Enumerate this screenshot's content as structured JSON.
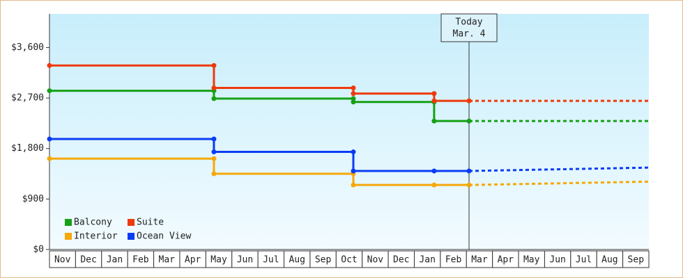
{
  "chart_data": {
    "type": "line",
    "step": true,
    "xlim": [
      0,
      23
    ],
    "xticks": [
      {
        "value": 0,
        "label": "Nov"
      },
      {
        "value": 1,
        "label": "Dec"
      },
      {
        "value": 2,
        "label": "Jan"
      },
      {
        "value": 3,
        "label": "Feb"
      },
      {
        "value": 4,
        "label": "Mar"
      },
      {
        "value": 5,
        "label": "Apr"
      },
      {
        "value": 6,
        "label": "May"
      },
      {
        "value": 7,
        "label": "Jun"
      },
      {
        "value": 8,
        "label": "Jul"
      },
      {
        "value": 9,
        "label": "Aug"
      },
      {
        "value": 10,
        "label": "Sep"
      },
      {
        "value": 11,
        "label": "Oct"
      },
      {
        "value": 12,
        "label": "Nov"
      },
      {
        "value": 13,
        "label": "Dec"
      },
      {
        "value": 14,
        "label": "Jan"
      },
      {
        "value": 15,
        "label": "Feb"
      },
      {
        "value": 16,
        "label": "Mar"
      },
      {
        "value": 17,
        "label": "Apr"
      },
      {
        "value": 18,
        "label": "May"
      },
      {
        "value": 19,
        "label": "Jun"
      },
      {
        "value": 20,
        "label": "Jul"
      },
      {
        "value": 21,
        "label": "Aug"
      },
      {
        "value": 22,
        "label": "Sep"
      }
    ],
    "ylim": [
      0,
      4200
    ],
    "yticks": [
      {
        "value": 0,
        "label": "$0"
      },
      {
        "value": 900,
        "label": "$900"
      },
      {
        "value": 1800,
        "label": "$1,800"
      },
      {
        "value": 2700,
        "label": "$2,700"
      },
      {
        "value": 3600,
        "label": "$3,600"
      }
    ],
    "today": {
      "x": 16.1,
      "label": [
        "Today",
        "Mar. 4"
      ]
    },
    "series": [
      {
        "name": "Balcony",
        "color": "#16a016",
        "x": [
          0,
          6.31,
          6.31,
          11.66,
          11.66,
          14.76,
          14.76,
          16.1
        ],
        "values": [
          2830,
          2830,
          2690,
          2690,
          2630,
          2630,
          2290,
          2290
        ],
        "projected": {
          "x": [
            16.1,
            23
          ],
          "values": [
            2290,
            2290
          ]
        }
      },
      {
        "name": "Suite",
        "color": "#ee3a0c",
        "x": [
          0,
          6.31,
          6.31,
          11.66,
          11.66,
          14.76,
          14.76,
          16.1
        ],
        "values": [
          3280,
          3280,
          2880,
          2880,
          2780,
          2780,
          2650,
          2650
        ],
        "projected": {
          "x": [
            16.1,
            23
          ],
          "values": [
            2650,
            2650
          ]
        }
      },
      {
        "name": "Interior",
        "color": "#f5a80a",
        "x": [
          0,
          6.31,
          6.31,
          11.66,
          11.66,
          14.76,
          16.1
        ],
        "values": [
          1620,
          1620,
          1350,
          1350,
          1150,
          1150,
          1150
        ],
        "projected": {
          "x": [
            16.1,
            23
          ],
          "values": [
            1150,
            1210
          ]
        }
      },
      {
        "name": "Ocean View",
        "color": "#0a3cf5",
        "x": [
          0,
          6.31,
          6.31,
          11.66,
          11.66,
          14.76,
          16.1
        ],
        "values": [
          1970,
          1970,
          1740,
          1740,
          1400,
          1400,
          1400
        ],
        "projected": {
          "x": [
            16.1,
            23
          ],
          "values": [
            1400,
            1460
          ]
        }
      }
    ]
  }
}
